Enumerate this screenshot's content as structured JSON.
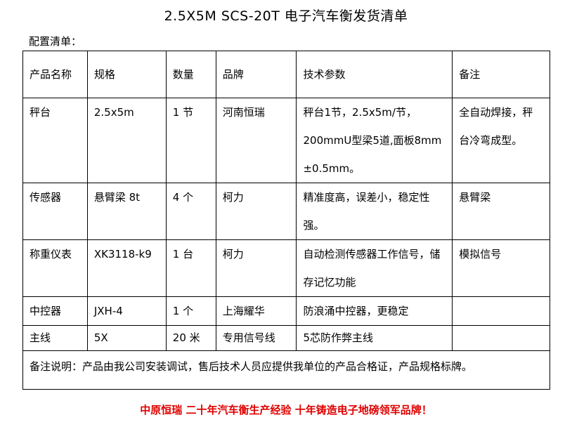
{
  "title": "2.5X5M SCS-20T 电子汽车衡发货清单",
  "subtitle": "配置清单：",
  "headers": [
    "产品名称",
    "规格",
    "数量",
    "品牌",
    "技术参数",
    "备注"
  ],
  "rows": [
    [
      "秤台",
      "2.5x5m",
      "1 节",
      "河南恒瑞",
      "秤台1节，2.5x5m/节，200mmU型梁5道,面板8mm ±0.5mm。",
      "全自动焊接，秤台冷弯成型。"
    ],
    [
      "传感器",
      "悬臂梁 8t",
      "4 个",
      "柯力",
      "精准度高，误差小，稳定性强。",
      "悬臂梁"
    ],
    [
      "称重仪表",
      "XK3118-k9",
      "1 台",
      "柯力",
      "自动检测传感器工作信号，储存记忆功能",
      "模拟信号"
    ],
    [
      "中控器",
      "JXH-4",
      "1 个",
      "上海耀华",
      "防浪涌中控器，更稳定",
      ""
    ],
    [
      "主线",
      "5X",
      "20 米",
      "专用信号线",
      "5芯防作弊主线",
      ""
    ]
  ],
  "note": "备注说明：产品由我公司安装调试，售后技术人员应提供我单位的产品合格证，产品规格标牌。",
  "footer": "中原恒瑞 二十年汽车衡生产经验 十年铸造电子地磅领军品牌！",
  "colors": {
    "footer": "#e00000"
  }
}
